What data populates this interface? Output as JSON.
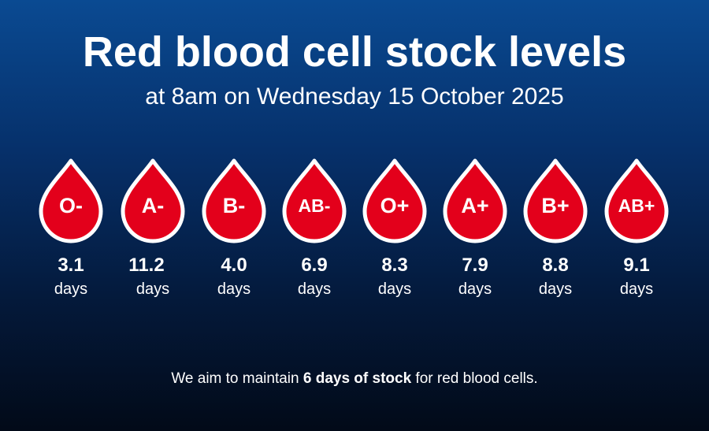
{
  "title": "Red blood cell stock levels",
  "subtitle": "at 8am on Wednesday 15 October 2025",
  "colors": {
    "drop_fill": "#e3001b",
    "drop_outline": "#ffffff",
    "bg_top": "#0a4a92",
    "bg_bottom": "#020a18"
  },
  "blood_types": [
    {
      "type": "O-",
      "days": "3.1",
      "unit": "days"
    },
    {
      "type": "A-",
      "days": "11.2",
      "unit": "days"
    },
    {
      "type": "B-",
      "days": "4.0",
      "unit": "days"
    },
    {
      "type": "AB-",
      "days": "6.9",
      "unit": "days"
    },
    {
      "type": "O+",
      "days": "8.3",
      "unit": "days"
    },
    {
      "type": "A+",
      "days": "7.9",
      "unit": "days"
    },
    {
      "type": "B+",
      "days": "8.8",
      "unit": "days"
    },
    {
      "type": "AB+",
      "days": "9.1",
      "unit": "days"
    }
  ],
  "footer": {
    "prefix": "We aim to maintain ",
    "emphasis": "6 days of stock",
    "suffix": " for red blood cells."
  }
}
